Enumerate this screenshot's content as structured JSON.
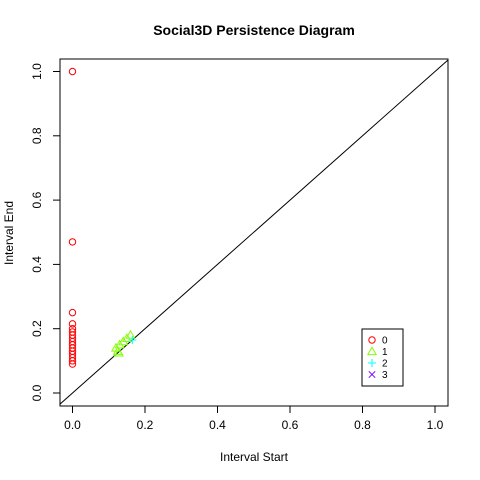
{
  "chart_data": {
    "type": "scatter",
    "title": "Social3D Persistence Diagram",
    "xlabel": "Interval Start",
    "ylabel": "Interval End",
    "xlim": [
      0,
      1
    ],
    "ylim": [
      0,
      1
    ],
    "x_ticks": [
      "0.0",
      "0.2",
      "0.4",
      "0.6",
      "0.8",
      "1.0"
    ],
    "y_ticks": [
      "0.0",
      "0.2",
      "0.4",
      "0.6",
      "0.8",
      "1.0"
    ],
    "diagonal": true,
    "grid": false,
    "legend_position": "bottom-right",
    "series": [
      {
        "name": "0",
        "color": "#ff0000",
        "marker": "circle",
        "points": [
          [
            0,
            1.0
          ],
          [
            0,
            0.47
          ],
          [
            0,
            0.25
          ],
          [
            0,
            0.215
          ],
          [
            0,
            0.2
          ],
          [
            0,
            0.19
          ],
          [
            0,
            0.18
          ],
          [
            0,
            0.17
          ],
          [
            0,
            0.16
          ],
          [
            0,
            0.15
          ],
          [
            0,
            0.14
          ],
          [
            0,
            0.13
          ],
          [
            0,
            0.12
          ],
          [
            0,
            0.11
          ],
          [
            0,
            0.1
          ],
          [
            0,
            0.09
          ]
        ]
      },
      {
        "name": "1",
        "color": "#80ff00",
        "marker": "triangle",
        "points": [
          [
            0.12,
            0.14
          ],
          [
            0.125,
            0.13
          ],
          [
            0.13,
            0.15
          ],
          [
            0.14,
            0.16
          ],
          [
            0.15,
            0.17
          ],
          [
            0.16,
            0.18
          ],
          [
            0.128,
            0.125
          ]
        ]
      },
      {
        "name": "2",
        "color": "#00ffff",
        "marker": "plus",
        "points": [
          [
            0.165,
            0.165
          ]
        ]
      },
      {
        "name": "3",
        "color": "#8000ff",
        "marker": "cross",
        "points": []
      }
    ]
  }
}
